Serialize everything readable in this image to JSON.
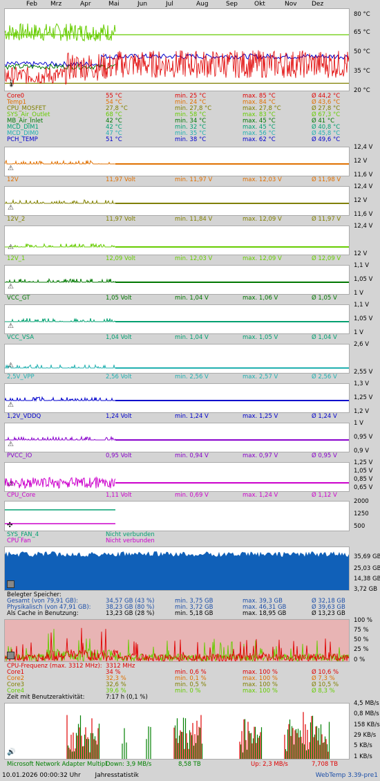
{
  "months": [
    "Feb",
    "Mrz",
    "Apr",
    "Mai",
    "Jun",
    "Jul",
    "Aug",
    "Sep",
    "Okt",
    "Nov",
    "Dez"
  ],
  "temp": {
    "yaxis": [
      "80 °C",
      "65 °C",
      "50 °C",
      "35 °C",
      "20 °C"
    ],
    "rows": [
      {
        "name": "Core0",
        "cur": "55 °C",
        "min": "min. 25 °C",
        "max": "max. 85 °C",
        "avg": "Ø 44,2 °C",
        "color": "#e00000"
      },
      {
        "name": "Temp1",
        "cur": "54 °C",
        "min": "min. 24 °C",
        "max": "max. 84 °C",
        "avg": "Ø 43,6 °C",
        "color": "#e07000"
      },
      {
        "name": "CPU_MOSFET",
        "cur": "27,8 °C",
        "min": "min. 27,8 °C",
        "max": "max. 27,8 °C",
        "avg": "Ø 27,8 °C",
        "color": "#808000"
      },
      {
        "name": "SYS_Air_Outlet",
        "cur": "68 °C",
        "min": "min. 58 °C",
        "max": "max. 83 °C",
        "avg": "Ø 67,3 °C",
        "color": "#66cc00"
      },
      {
        "name": "MB_Air_Inlet",
        "cur": "42 °C",
        "min": "min. 34 °C",
        "max": "max. 45 °C",
        "avg": "Ø 41 °C",
        "color": "#007700"
      },
      {
        "name": "MCD_DIM1",
        "cur": "42 °C",
        "min": "min. 32 °C",
        "max": "max. 45 °C",
        "avg": "Ø 40,8 °C",
        "color": "#00a070"
      },
      {
        "name": "MCD_DIM0",
        "cur": "47 °C",
        "min": "min. 35 °C",
        "max": "max. 56 °C",
        "avg": "Ø 45,8 °C",
        "color": "#20b0b0"
      },
      {
        "name": "PCH_TEMP",
        "cur": "51 °C",
        "min": "min. 38 °C",
        "max": "max. 62 °C",
        "avg": "Ø 49,6 °C",
        "color": "#0000cc"
      }
    ]
  },
  "volts": [
    {
      "yaxis": [
        "12,4 V",
        "12 V",
        "11,6 V"
      ],
      "name": "12V",
      "cur": "11,97 Volt",
      "min": "min. 11,97 V",
      "max": "max. 12,03 V",
      "avg": "Ø 11,98 V",
      "color": "#e07000"
    },
    {
      "yaxis": [
        "12,4 V",
        "12 V",
        "11,6 V"
      ],
      "name": "12V_2",
      "cur": "11,97 Volt",
      "min": "min. 11,84 V",
      "max": "max. 12,09 V",
      "avg": "Ø 11,97 V",
      "color": "#808000"
    },
    {
      "yaxis": [
        "12,4 V",
        "",
        "12 V"
      ],
      "name": "12V_1",
      "cur": "12,09 Volt",
      "min": "min. 12,03 V",
      "max": "max. 12,09 V",
      "avg": "Ø 12,09 V",
      "color": "#66cc00"
    },
    {
      "yaxis": [
        "1,1 V",
        "1,05 V",
        "1 V"
      ],
      "name": "VCC_GT",
      "cur": "1,05 Volt",
      "min": "min. 1,04 V",
      "max": "max. 1,06 V",
      "avg": "Ø 1,05 V",
      "color": "#007700"
    },
    {
      "yaxis": [
        "1,1 V",
        "1,05 V",
        "1 V"
      ],
      "name": "VCC_VSA",
      "cur": "1,04 Volt",
      "min": "min. 1,04 V",
      "max": "max. 1,05 V",
      "avg": "Ø 1,04 V",
      "color": "#00a070"
    },
    {
      "yaxis": [
        "2,6 V",
        "",
        "2,55 V"
      ],
      "name": "2,5V_VPP",
      "cur": "2,56 Volt",
      "min": "min. 2,56 V",
      "max": "max. 2,57 V",
      "avg": "Ø 2,56 V",
      "color": "#20b0b0"
    },
    {
      "yaxis": [
        "1,3 V",
        "1,25 V",
        "1,2 V"
      ],
      "name": "1,2V_VDDQ",
      "cur": "1,24 Volt",
      "min": "min. 1,24 V",
      "max": "max. 1,25 V",
      "avg": "Ø 1,24 V",
      "color": "#0000cc"
    },
    {
      "yaxis": [
        "1 V",
        "0,95 V",
        "0,9 V"
      ],
      "name": "PVCC_IO",
      "cur": "0,95 Volt",
      "min": "min. 0,94 V",
      "max": "max. 0,97 V",
      "avg": "Ø 0,95 V",
      "color": "#8800cc"
    },
    {
      "yaxis": [
        "1,25 V",
        "1,05 V",
        "0,85 V",
        "0,65 V"
      ],
      "name": "CPU_Core",
      "cur": "1,11 Volt",
      "min": "min. 0,69 V",
      "max": "max. 1,24 V",
      "avg": "Ø 1,12 V",
      "color": "#cc00cc"
    }
  ],
  "fans": {
    "yaxis": [
      "2000",
      "1250",
      "500"
    ],
    "rows": [
      {
        "name": "SYS_FAN_4",
        "status": "Nicht verbunden",
        "color": "#00a070"
      },
      {
        "name": "CPU Fan",
        "status": "Nicht verbunden",
        "color": "#cc00cc"
      }
    ]
  },
  "memory": {
    "yaxis": [
      "35,69 GB",
      "25,03 GB",
      "14,38 GB",
      "3,72 GB"
    ],
    "title": "Belegter Speicher:",
    "rows": [
      {
        "name": "Gesamt (von 79,91 GB):",
        "cur": "34,57 GB (43 %)",
        "min": "min. 3,75 GB",
        "max": "max. 39,3 GB",
        "avg": "Ø 32,18 GB",
        "color": "#1b4ea8"
      },
      {
        "name": "Physikalisch (von 47,91 GB):",
        "cur": "38,23 GB (80 %)",
        "min": "min. 3,72 GB",
        "max": "max. 46,31 GB",
        "avg": "Ø 39,63 GB",
        "color": "#1b4ea8"
      },
      {
        "name": "Als Cache in Benutzung:",
        "cur": "13,23 GB (28 %)",
        "min": "min. 5,18 GB",
        "max": "max. 18,95 GB",
        "avg": "Ø 13,23 GB",
        "color": "#000000"
      }
    ]
  },
  "cpu": {
    "yaxis": [
      "100 %",
      "75 %",
      "50 %",
      "25 %",
      "0 %"
    ],
    "freq_label": "CPU-Frequenz (max. 3312 MHz):",
    "freq_value": "3312 MHz",
    "rows": [
      {
        "name": "Core1",
        "cur": "34 %",
        "min": "min. 0,6 %",
        "max": "max. 100 %",
        "avg": "Ø 10,6 %",
        "color": "#e00000"
      },
      {
        "name": "Core2",
        "cur": "32,3 %",
        "min": "min. 0,1 %",
        "max": "max. 100 %",
        "avg": "Ø 7,3 %",
        "color": "#e07000"
      },
      {
        "name": "Core3",
        "cur": "32,6 %",
        "min": "min. 0,5 %",
        "max": "max. 100 %",
        "avg": "Ø 10,5 %",
        "color": "#808000"
      },
      {
        "name": "Core4",
        "cur": "39,6 %",
        "min": "min. 0 %",
        "max": "max. 100 %",
        "avg": "Ø 8,3 %",
        "color": "#66cc00"
      }
    ],
    "activity_label": "Zeit mit Benutzeraktivität:",
    "activity_value": "7:17 h (0,1 %)"
  },
  "network": {
    "yaxis": [
      "4,5 MB/s",
      "0,8 MB/s",
      "158 KB/s",
      "29 KB/s",
      "5 KB/s",
      "1 KB/s"
    ],
    "adapter": "Microsoft Network Adapter Multipl",
    "down": "Down: 3,9 MB/s",
    "down_total": "8,58 TB",
    "up": "Up: 2,3 MB/s",
    "up_total": "7,708 TB"
  },
  "footer": {
    "datetime": "10.01.2026 00:00:32 Uhr",
    "mode": "Jahresstatistik",
    "version": "WebTemp 3.39-pre1"
  }
}
